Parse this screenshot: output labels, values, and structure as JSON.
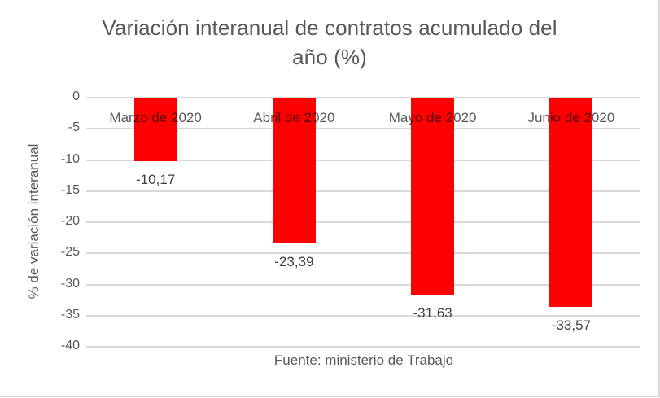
{
  "chart_data": {
    "type": "bar",
    "title": "Variación interanual de contratos  acumulado del año (%)",
    "title_lines": [
      "Variación interanual de contratos  acumulado del",
      "año (%)"
    ],
    "xlabel": "Fuente: ministerio de Trabajo",
    "ylabel": "% de variación interanual",
    "categories": [
      "Marzo de 2020",
      "Abril de 2020",
      "Mayo de 2020",
      "Junio de 2020"
    ],
    "values": [
      -10.17,
      -23.39,
      -31.63,
      -33.57
    ],
    "value_labels": [
      "-10,17",
      "-23,39",
      "-31,63",
      "-33,57"
    ],
    "ylim": [
      -40,
      0
    ],
    "yticks": [
      0,
      -5,
      -10,
      -15,
      -20,
      -25,
      -30,
      -35,
      -40
    ],
    "ytick_labels": [
      "0",
      "-5",
      "-10",
      "-15",
      "-20",
      "-25",
      "-30",
      "-35",
      "-40"
    ],
    "grid": true,
    "legend": "none",
    "bar_color": "#ff0000"
  }
}
